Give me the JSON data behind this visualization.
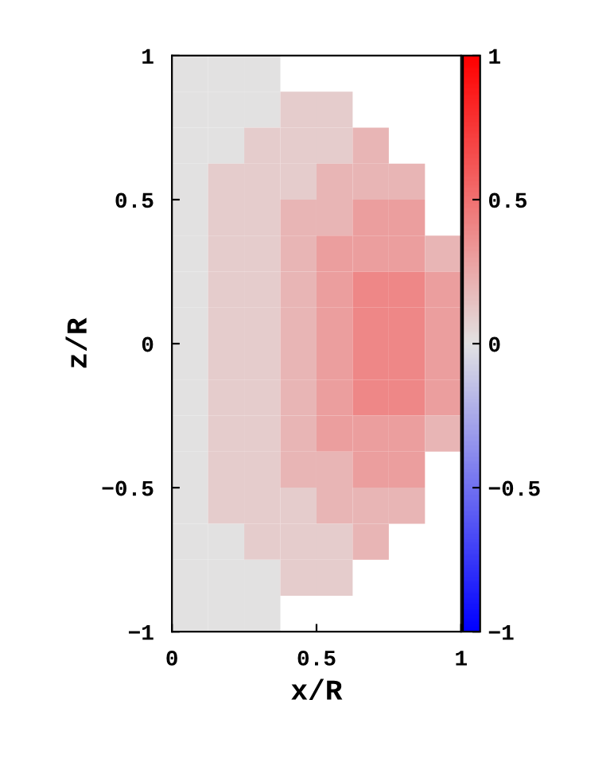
{
  "chart_data": {
    "type": "heatmap",
    "xlabel": "x/R",
    "ylabel": "z/R",
    "xlim": [
      0,
      1
    ],
    "ylim": [
      -1,
      1
    ],
    "xticks": [
      0,
      0.5,
      1
    ],
    "yticks": [
      -1,
      -0.5,
      0,
      0.5,
      1
    ],
    "clim": [
      -1,
      1
    ],
    "cticks": [
      -1,
      -0.5,
      0,
      0.5,
      1
    ],
    "cells": [
      [
        0.0,
        0.0,
        0.0,
        null,
        null,
        null,
        null,
        null
      ],
      [
        0.0,
        0.0,
        0.0,
        0.1,
        0.1,
        null,
        null,
        null
      ],
      [
        0.0,
        0.0,
        0.1,
        0.1,
        0.1,
        0.2,
        null,
        null
      ],
      [
        0.0,
        0.1,
        0.1,
        0.1,
        0.2,
        0.2,
        0.2,
        null
      ],
      [
        0.0,
        0.1,
        0.1,
        0.2,
        0.2,
        0.3,
        0.3,
        null
      ],
      [
        0.0,
        0.1,
        0.1,
        0.2,
        0.3,
        0.3,
        0.3,
        0.2
      ],
      [
        0.0,
        0.1,
        0.1,
        0.2,
        0.3,
        0.4,
        0.4,
        0.3
      ],
      [
        0.0,
        0.1,
        0.1,
        0.2,
        0.3,
        0.4,
        0.4,
        0.3
      ],
      [
        0.0,
        0.1,
        0.1,
        0.2,
        0.3,
        0.4,
        0.4,
        0.3
      ],
      [
        0.0,
        0.1,
        0.1,
        0.2,
        0.3,
        0.4,
        0.4,
        0.3
      ],
      [
        0.0,
        0.1,
        0.1,
        0.2,
        0.3,
        0.3,
        0.3,
        0.2
      ],
      [
        0.0,
        0.1,
        0.1,
        0.2,
        0.2,
        0.3,
        0.3,
        null
      ],
      [
        0.0,
        0.1,
        0.1,
        0.1,
        0.2,
        0.2,
        0.2,
        null
      ],
      [
        0.0,
        0.0,
        0.1,
        0.1,
        0.1,
        0.2,
        null,
        null
      ],
      [
        0.0,
        0.0,
        0.0,
        0.1,
        0.1,
        null,
        null,
        null
      ],
      [
        0.0,
        0.0,
        0.0,
        null,
        null,
        null,
        null,
        null
      ]
    ]
  }
}
